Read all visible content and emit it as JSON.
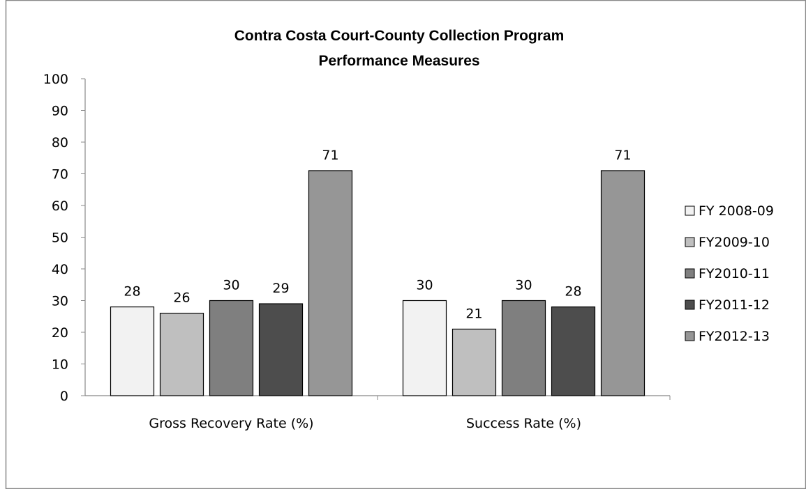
{
  "chart_data": {
    "type": "bar",
    "title": [
      "Contra Costa Court-County  Collection Program",
      "Performance Measures"
    ],
    "xlabel": "",
    "ylabel": "",
    "ylim": [
      0,
      100
    ],
    "yticks": [
      0,
      10,
      20,
      30,
      40,
      50,
      60,
      70,
      80,
      90,
      100
    ],
    "categories": [
      "Gross Recovery Rate (%)",
      "Success Rate (%)"
    ],
    "series": [
      {
        "name": "FY 2008-09",
        "values": [
          28,
          30
        ],
        "color": "#f2f2f2"
      },
      {
        "name": "FY2009-10",
        "values": [
          26,
          21
        ],
        "color": "#bfbfbf"
      },
      {
        "name": "FY2010-11",
        "values": [
          30,
          30
        ],
        "color": "#7f7f7f"
      },
      {
        "name": "FY2011-12",
        "values": [
          29,
          28
        ],
        "color": "#4d4d4d"
      },
      {
        "name": "FY2012-13",
        "values": [
          71,
          71
        ],
        "color": "#969696"
      }
    ],
    "grid": false,
    "legend_position": "right",
    "data_labels": true
  }
}
